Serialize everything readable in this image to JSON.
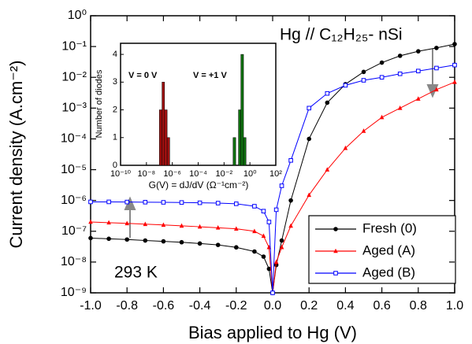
{
  "chart_data": [
    {
      "type": "line",
      "yscale": "log",
      "xlabel": "Bias applied to Hg (V)",
      "ylabel": "Current density (A.cm⁻²)",
      "annotations": [
        "Hg // C₁₂H₂₅- nSi",
        "293 K"
      ],
      "legend": "lower right",
      "x": [
        -1.0,
        -0.9,
        -0.8,
        -0.7,
        -0.6,
        -0.5,
        -0.4,
        -0.3,
        -0.2,
        -0.1,
        -0.05,
        -0.02,
        0,
        0.02,
        0.05,
        0.1,
        0.2,
        0.3,
        0.4,
        0.5,
        0.6,
        0.7,
        0.8,
        0.9,
        1.0
      ],
      "series": [
        {
          "name": "Fresh (0)",
          "color": "#000000",
          "marker": "circle",
          "values": [
            6e-08,
            5.7e-08,
            5.4e-08,
            5e-08,
            4.7e-08,
            4.4e-08,
            4e-08,
            3.6e-08,
            3e-08,
            2.2e-08,
            1.5e-08,
            6e-09,
            1e-09,
            8e-09,
            5e-08,
            1e-06,
            0.0001,
            0.0015,
            0.006,
            0.015,
            0.03,
            0.05,
            0.07,
            0.09,
            0.12
          ]
        },
        {
          "name": "Aged  (A)",
          "color": "#ff0000",
          "marker": "triangle",
          "values": [
            2e-07,
            1.9e-07,
            1.8e-07,
            1.7e-07,
            1.6e-07,
            1.5e-07,
            1.4e-07,
            1.3e-07,
            1.2e-07,
            1e-07,
            7e-08,
            3e-08,
            1e-09,
            1e-08,
            3e-08,
            1.5e-07,
            1.5e-06,
            1e-05,
            5e-05,
            0.00018,
            0.0005,
            0.001,
            0.002,
            0.004,
            0.007
          ]
        },
        {
          "name": "Aged  (B)",
          "color": "#0000ff",
          "marker": "square",
          "values": [
            9e-07,
            9e-07,
            8.9e-07,
            8.8e-07,
            8.7e-07,
            8.6e-07,
            8.4e-07,
            8.2e-07,
            7.8e-07,
            6.5e-07,
            4.5e-07,
            2e-07,
            1e-09,
            5e-07,
            3e-06,
            2e-05,
            0.001,
            0.003,
            0.0055,
            0.008,
            0.01,
            0.013,
            0.016,
            0.02,
            0.025
          ]
        }
      ],
      "xlim": [
        -1,
        1
      ],
      "xticks": [
        {
          "value": -1,
          "label": "-1.0"
        },
        -0.8,
        -0.6,
        -0.4,
        -0.2,
        {
          "value": 0,
          "label": "0.0"
        },
        0.2,
        0.4,
        0.6,
        0.8,
        {
          "value": 1,
          "label": "1.0"
        }
      ],
      "ylim": [
        1e-09,
        1
      ],
      "yticks": [
        {
          "value": 1e-09,
          "label": "10⁻⁹"
        },
        {
          "value": 1e-08,
          "label": "10⁻⁸"
        },
        {
          "value": 1e-07,
          "label": "10⁻⁷"
        },
        {
          "value": 1e-06,
          "label": "10⁻⁶"
        },
        {
          "value": 1e-05,
          "label": "10⁻⁵"
        },
        {
          "value": 0.0001,
          "label": "10⁻⁴"
        },
        {
          "value": 0.001,
          "label": "10⁻³"
        },
        {
          "value": 0.01,
          "label": "10⁻²"
        },
        {
          "value": 0.1,
          "label": "10⁻¹"
        },
        {
          "value": 1,
          "label": "10⁰"
        }
      ]
    },
    {
      "type": "histogram",
      "xscale": "log",
      "xlabel": "G(V) = dJ/dV (Ω⁻¹cm⁻²)",
      "ylabel": "Number of diodes",
      "annotations": [
        "V = 0 V",
        "V = +1 V"
      ],
      "series": [
        {
          "color": "#a01010",
          "bins": [
            1e-07,
            1.6e-07,
            2.5e-07,
            4e-07,
            6.3e-07
          ],
          "values": [
            2,
            3,
            2,
            1
          ]
        },
        {
          "color": "#107010",
          "bins": [
            0.05,
            0.08,
            0.13,
            0.2,
            0.32,
            0.5
          ],
          "values": [
            1,
            0,
            2,
            4,
            1
          ]
        }
      ],
      "xlim": [
        1e-10,
        100
      ],
      "xticks": [
        {
          "value": 1e-10,
          "label": "10⁻¹⁰"
        },
        {
          "value": 1e-08,
          "label": "10⁻⁸"
        },
        {
          "value": 1e-06,
          "label": "10⁻⁶"
        },
        {
          "value": 0.0001,
          "label": "10⁻⁴"
        },
        {
          "value": 0.01,
          "label": "10⁻²"
        },
        {
          "value": 1,
          "label": "10⁰"
        },
        {
          "value": 100,
          "label": "10²"
        }
      ],
      "ylim": [
        0,
        4.4
      ],
      "yticks": [
        0,
        1,
        2,
        3,
        4
      ]
    }
  ]
}
